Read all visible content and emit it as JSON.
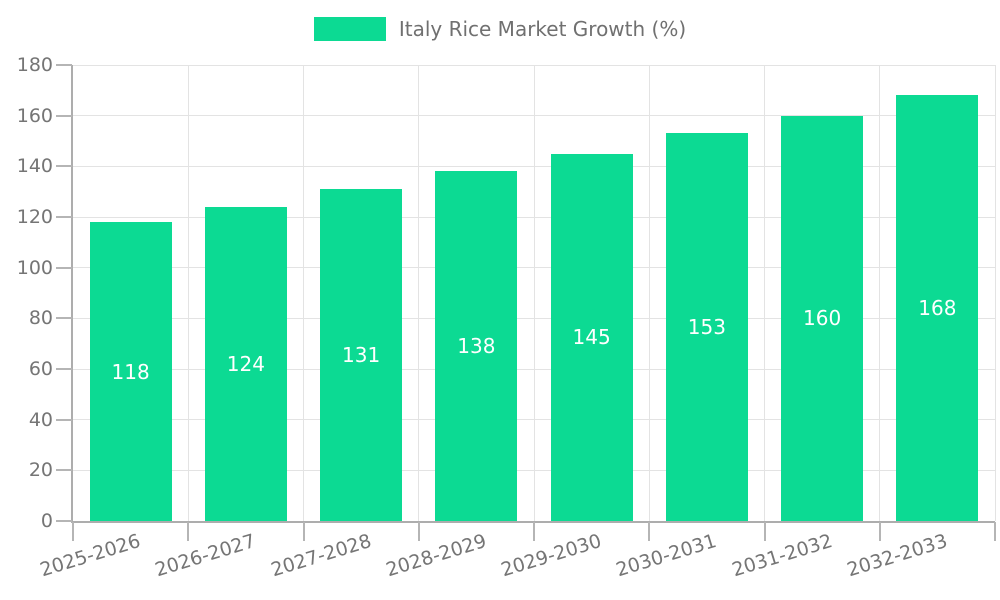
{
  "colors": {
    "bar": "#0CDA93",
    "grid": "#E3E3E3",
    "axis": "#ADADAD",
    "tick": "#B5B5B5",
    "tick_label": "#757575",
    "legend_text": "#707070",
    "value_label": "#FFFFFF",
    "background": "#FFFFFF"
  },
  "chart_data": {
    "type": "bar",
    "title": "",
    "legend_label": "Italy Rice Market Growth (%)",
    "legend_position": "top-center",
    "categories": [
      "2025-2026",
      "2026-2027",
      "2027-2028",
      "2028-2029",
      "2029-2030",
      "2030-2031",
      "2031-2032",
      "2032-2033"
    ],
    "values": [
      118,
      124,
      131,
      138,
      145,
      153,
      160,
      168
    ],
    "xlabel": "",
    "ylabel": "",
    "ylim": [
      0,
      180
    ],
    "ytick_step": 20,
    "ytick_labels": [
      "0",
      "20",
      "40",
      "60",
      "80",
      "100",
      "120",
      "140",
      "160",
      "180"
    ],
    "grid": true,
    "value_labels": "inside-center-white",
    "x_label_rotation_deg": -17
  }
}
